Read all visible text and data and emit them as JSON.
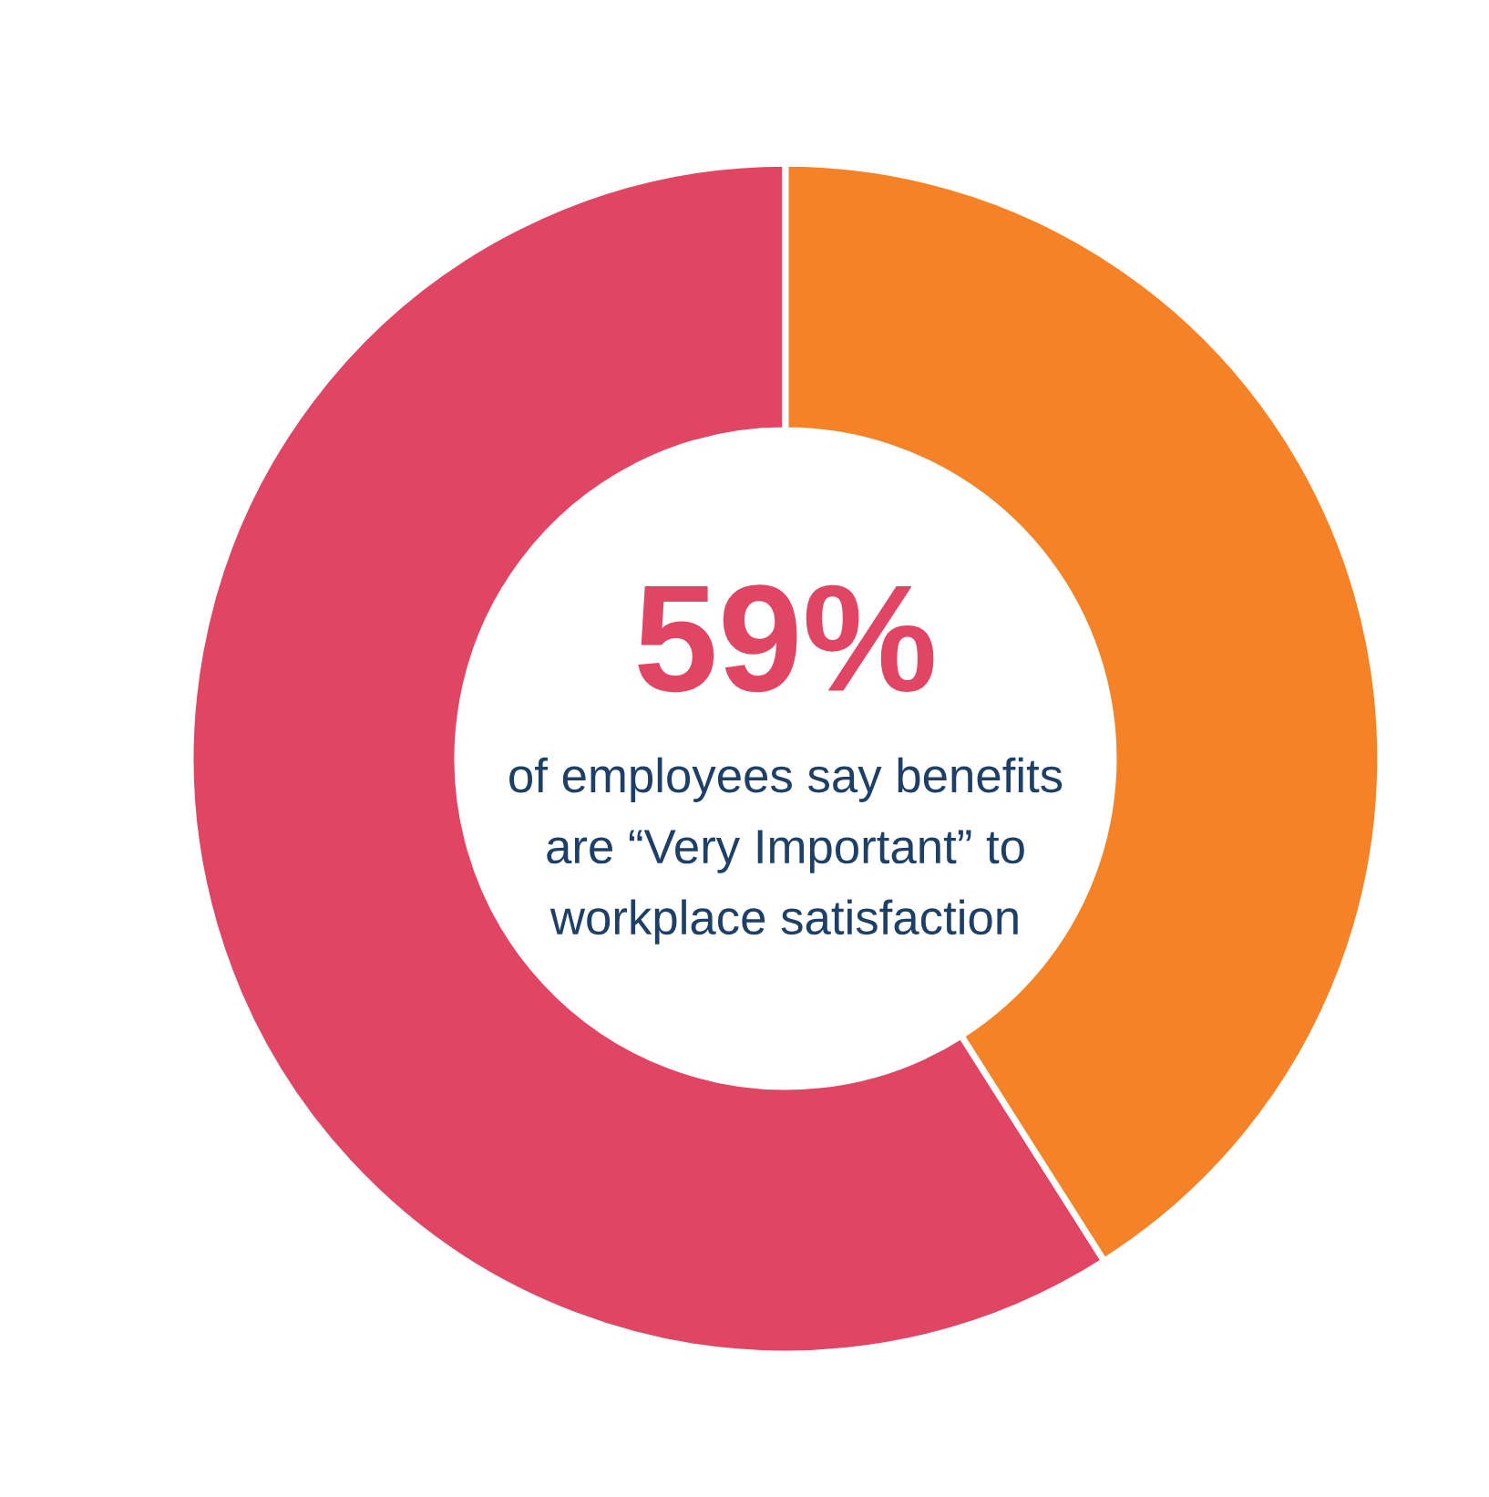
{
  "chart_data": {
    "type": "donut",
    "title": "59%",
    "subtitle": "of employees say benefits\nare “Very Important” to\nworkplace satisfaction",
    "categories": [
      null,
      null
    ],
    "values": [
      59,
      41
    ],
    "colors": [
      "#e04663",
      "#f58226"
    ]
  }
}
